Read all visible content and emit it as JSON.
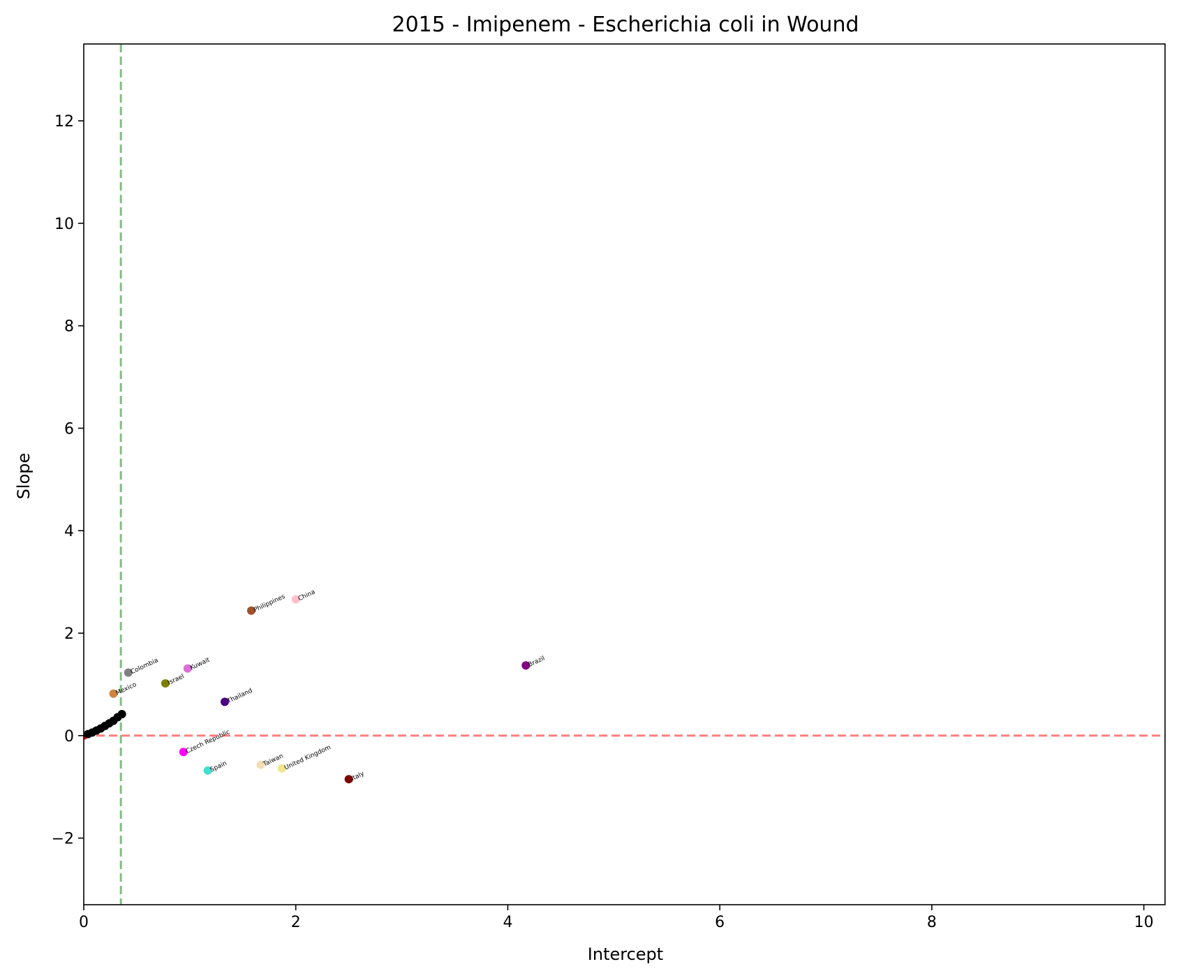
{
  "chart_data": {
    "type": "scatter",
    "title": "2015 - Imipenem - Escherichia coli in Wound",
    "xlabel": "Intercept",
    "ylabel": "Slope",
    "xlim": [
      0,
      10.2
    ],
    "ylim": [
      -3.3,
      13.5
    ],
    "xticks": [
      0,
      2,
      4,
      6,
      8,
      10
    ],
    "yticks": [
      -2,
      0,
      2,
      4,
      6,
      8,
      10,
      12
    ],
    "grid": false,
    "reference_lines": [
      {
        "orientation": "horizontal",
        "value": 0,
        "color": "#ff7f7f",
        "style": "dashed"
      },
      {
        "orientation": "vertical",
        "value": 0.35,
        "color": "#7fbf7f",
        "style": "dashed"
      }
    ],
    "points": [
      {
        "label": "Brazil",
        "x": 4.17,
        "y": 1.37,
        "color": "#800080"
      },
      {
        "label": "China",
        "x": 2.0,
        "y": 2.66,
        "color": "#ffc0cb"
      },
      {
        "label": "Philippines",
        "x": 1.58,
        "y": 2.44,
        "color": "#a0522d"
      },
      {
        "label": "Colombia",
        "x": 0.42,
        "y": 1.23,
        "color": "#808080"
      },
      {
        "label": "Kuwait",
        "x": 0.98,
        "y": 1.31,
        "color": "#da70d6"
      },
      {
        "label": "Israel",
        "x": 0.77,
        "y": 1.02,
        "color": "#808000"
      },
      {
        "label": "Mexico",
        "x": 0.28,
        "y": 0.82,
        "color": "#cd853f"
      },
      {
        "label": "Thailand",
        "x": 1.33,
        "y": 0.66,
        "color": "#4b0082"
      },
      {
        "label": "Czech Republic",
        "x": 0.94,
        "y": -0.32,
        "color": "#ff00ff"
      },
      {
        "label": "Spain",
        "x": 1.17,
        "y": -0.68,
        "color": "#40e0d0"
      },
      {
        "label": "Taiwan",
        "x": 1.67,
        "y": -0.57,
        "color": "#f5deb3"
      },
      {
        "label": "United Kingdom",
        "x": 1.87,
        "y": -0.64,
        "color": "#f0e68c"
      },
      {
        "label": "Italy",
        "x": 2.5,
        "y": -0.85,
        "color": "#800000"
      },
      {
        "label": "",
        "x": 0.0,
        "y": 0.0,
        "color": "#ff0000"
      },
      {
        "label": "",
        "x": 0.04,
        "y": 0.03,
        "color": "#000000"
      },
      {
        "label": "",
        "x": 0.08,
        "y": 0.06,
        "color": "#000000"
      },
      {
        "label": "",
        "x": 0.12,
        "y": 0.1,
        "color": "#000000"
      },
      {
        "label": "",
        "x": 0.16,
        "y": 0.14,
        "color": "#000000"
      },
      {
        "label": "",
        "x": 0.2,
        "y": 0.19,
        "color": "#000000"
      },
      {
        "label": "",
        "x": 0.24,
        "y": 0.24,
        "color": "#000000"
      },
      {
        "label": "",
        "x": 0.28,
        "y": 0.29,
        "color": "#000000"
      },
      {
        "label": "",
        "x": 0.32,
        "y": 0.36,
        "color": "#000000"
      },
      {
        "label": "",
        "x": 0.36,
        "y": 0.42,
        "color": "#000000"
      }
    ]
  }
}
